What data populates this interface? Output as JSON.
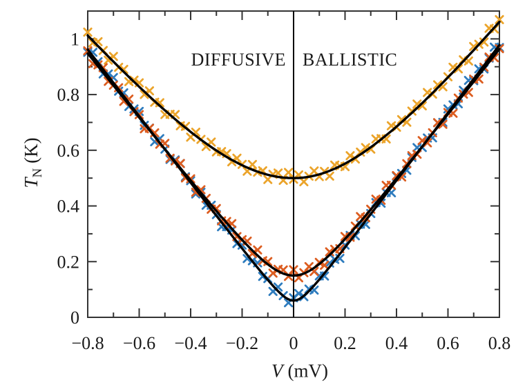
{
  "figure": {
    "background": "#ffffff",
    "text_color": "#1a1a1a",
    "frame_color": "#333333",
    "fit_line_color": "#000000",
    "zero_line_color": "#000000"
  },
  "annotations": {
    "left_region_label": "DIFFUSIVE",
    "right_region_label": "BALLISTIC"
  },
  "axes": {
    "x": {
      "title_var": "V",
      "title_unit": "(mV)",
      "major_ticks": [
        -0.8,
        -0.6,
        -0.4,
        -0.2,
        0,
        0.2,
        0.4,
        0.6,
        0.8
      ],
      "tick_labels": [
        "−0.8",
        "−0.6",
        "−0.4",
        "−0.2",
        "0",
        "0.2",
        "0.4",
        "0.6",
        "0.8"
      ],
      "minor_ticks": [
        -0.7,
        -0.5,
        -0.3,
        -0.1,
        0.1,
        0.3,
        0.5,
        0.7
      ]
    },
    "y": {
      "title_var": "T",
      "title_sub": "N",
      "title_unit": "(K)",
      "major_ticks": [
        0,
        0.2,
        0.4,
        0.6,
        0.8,
        1
      ],
      "tick_labels": [
        "0",
        "0.2",
        "0.4",
        "0.6",
        "0.8",
        "1"
      ],
      "minor_ticks": [
        0.1,
        0.3,
        0.5,
        0.7,
        0.9
      ]
    }
  },
  "chart_data": {
    "type": "scatter",
    "title": "",
    "xlabel": "V (mV)",
    "ylabel": "T_N (K)",
    "xlim": [
      -0.8,
      0.8
    ],
    "ylim": [
      0,
      1.1
    ],
    "grid": false,
    "legend": "none",
    "marker": "x-cross",
    "zero_line_x": 0,
    "region_labels": [
      {
        "text": "DIFFUSIVE",
        "side": "left of V=0"
      },
      {
        "text": "BALLISTIC",
        "side": "right of V=0"
      }
    ],
    "series_model_note": "noise temperature T_N = sqrt(t0^2 + (slope*V)^2); markers = model + scatter offsets (cycled); black curves are the fits",
    "series": [
      {
        "name": "series-yellow",
        "color": "#EBA42B",
        "t0": 0.5,
        "slope_left": 1.1,
        "slope_right": 1.17,
        "min_value_at_V0": 0.5,
        "value_at_minus_0p8": 1.01,
        "value_at_plus_0p8": 1.06,
        "x_start": -0.8,
        "x_step": 0.02,
        "n_points": 81,
        "scatter": [
          0.012,
          -0.007,
          0.016,
          0.003,
          -0.013,
          0.019,
          -0.002,
          0.009,
          -0.017,
          0.006,
          0.014,
          -0.01,
          0.02,
          -0.004,
          0.011,
          -0.015,
          0.002,
          0.017,
          -0.008,
          0.005,
          -0.019,
          0.013,
          0.001,
          -0.011,
          0.018,
          -0.005,
          0.008
        ]
      },
      {
        "name": "series-blue",
        "color": "#2E7CBE",
        "t0": 0.06,
        "slope_left": 1.2,
        "slope_right": 1.22,
        "min_value_at_V0": 0.06,
        "value_at_minus_0p8": 0.96,
        "value_at_plus_0p8": 0.98,
        "x_start": -0.8,
        "x_step": 0.02,
        "n_points": 81,
        "scatter": [
          -0.01,
          0.014,
          0.004,
          -0.016,
          0.008,
          0.019,
          -0.006,
          0.012,
          -0.013,
          0.002,
          0.017,
          -0.009,
          0.005,
          -0.02,
          0.015,
          0.001,
          -0.012,
          0.01,
          0.021,
          -0.003,
          0.007,
          -0.017,
          0.013
        ]
      },
      {
        "name": "series-orange",
        "color": "#DC5D20",
        "t0": 0.15,
        "slope_left": 1.17,
        "slope_right": 1.19,
        "min_value_at_V0": 0.15,
        "value_at_minus_0p8": 0.95,
        "value_at_plus_0p8": 0.96,
        "x_start": -0.8,
        "x_step": 0.02,
        "n_points": 81,
        "scatter": [
          0.009,
          -0.014,
          0.005,
          0.018,
          -0.008,
          0.001,
          0.015,
          -0.011,
          0.02,
          -0.002,
          0.01,
          -0.018,
          0.007,
          0.013,
          -0.005,
          0.021,
          -0.01,
          0.003,
          0.016,
          -0.013,
          0.006,
          -0.02,
          0.011,
          0.002,
          -0.015
        ]
      }
    ],
    "fits": [
      {
        "for": "series-yellow",
        "t0": 0.5,
        "slope_left": 1.1,
        "slope_right": 1.17,
        "color": "#000000"
      },
      {
        "for": "series-blue",
        "t0": 0.06,
        "slope_left": 1.2,
        "slope_right": 1.22,
        "color": "#000000"
      },
      {
        "for": "series-orange",
        "t0": 0.15,
        "slope_left": 1.17,
        "slope_right": 1.19,
        "color": "#000000"
      }
    ]
  }
}
